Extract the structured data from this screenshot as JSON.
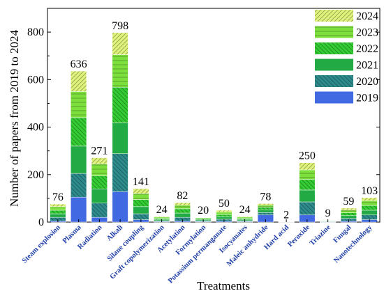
{
  "chart_data": {
    "type": "bar",
    "stacked": true,
    "xlabel": "Treatments",
    "ylabel": "Number of papers from 2019 to 2024",
    "ylim": [
      0,
      900
    ],
    "yticks": [
      0,
      200,
      400,
      600,
      800
    ],
    "categories": [
      "Steam explosion",
      "Plasma",
      "Radiation",
      "Alkali",
      "Silane coupling",
      "Graft copolymerization",
      "Acetylation",
      "Formylation",
      "Potassium permanganate",
      "Isocyanates",
      "Maleic anhydride",
      "Hard acid",
      "Peroxide",
      "Triazine",
      "Fungal",
      "Nanotechnology"
    ],
    "totals": [
      76,
      636,
      271,
      798,
      141,
      24,
      82,
      20,
      50,
      24,
      78,
      2,
      250,
      9,
      59,
      103
    ],
    "legend_position": "top-right",
    "series": [
      {
        "name": "2019",
        "color": "#4169e1",
        "pattern": "none",
        "values": [
          5,
          105,
          20,
          128,
          10,
          2,
          5,
          2,
          4,
          2,
          30,
          0,
          30,
          1,
          5,
          10
        ]
      },
      {
        "name": "2020",
        "color": "#2e8b8b",
        "pattern": "back",
        "values": [
          15,
          100,
          60,
          160,
          25,
          4,
          15,
          4,
          8,
          4,
          10,
          0,
          55,
          2,
          10,
          20
        ]
      },
      {
        "name": "2021",
        "color": "#22aa44",
        "pattern": "none",
        "values": [
          15,
          115,
          60,
          130,
          30,
          5,
          18,
          5,
          10,
          5,
          12,
          1,
          50,
          2,
          12,
          20
        ]
      },
      {
        "name": "2022",
        "color": "#33cc33",
        "pattern": "back",
        "values": [
          15,
          120,
          55,
          150,
          30,
          5,
          18,
          4,
          10,
          5,
          10,
          0,
          45,
          2,
          12,
          20
        ]
      },
      {
        "name": "2023",
        "color": "#7ddf3c",
        "pattern": "horiz",
        "values": [
          15,
          110,
          50,
          137,
          25,
          5,
          15,
          4,
          10,
          5,
          10,
          1,
          40,
          1,
          12,
          20
        ]
      },
      {
        "name": "2024",
        "color": "#dff27a",
        "pattern": "fwd",
        "values": [
          11,
          86,
          26,
          93,
          21,
          3,
          11,
          1,
          8,
          3,
          6,
          0,
          30,
          1,
          8,
          13
        ]
      }
    ]
  }
}
